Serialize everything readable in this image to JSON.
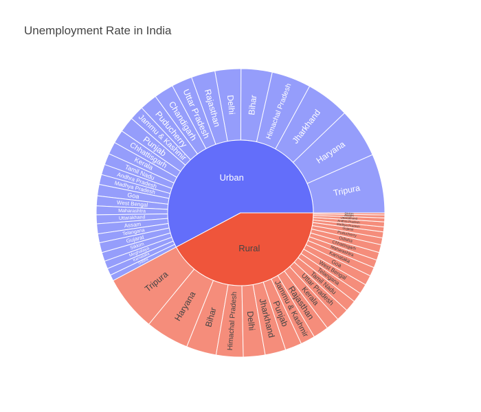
{
  "chart_data": {
    "type": "sunburst",
    "title": "Unemployment Rate in India",
    "colors": {
      "Urban": {
        "inner": "#636efa",
        "outer": "#959dfb"
      },
      "Rural": {
        "inner": "#ef553b",
        "outer": "#f58d7b"
      },
      "border": "#ffffff",
      "text_light": "#ffffff",
      "text_dark": "#444444"
    },
    "groups": [
      {
        "name": "Urban",
        "children": [
          {
            "name": "Tripura",
            "value": 28.5
          },
          {
            "name": "Haryana",
            "value": 24.0
          },
          {
            "name": "Jharkhand",
            "value": 21.0
          },
          {
            "name": "Himachal Pradesh",
            "value": 19.0
          },
          {
            "name": "Bihar",
            "value": 15.0
          },
          {
            "name": "Delhi",
            "value": 12.5
          },
          {
            "name": "Rajasthan",
            "value": 11.5
          },
          {
            "name": "Uttar Pradesh",
            "value": 10.0
          },
          {
            "name": "Chandigarh",
            "value": 9.5
          },
          {
            "name": "Puducherry",
            "value": 8.5
          },
          {
            "name": "Jammu & Kashmir",
            "value": 7.0
          },
          {
            "name": "Punjab",
            "value": 7.5
          },
          {
            "name": "Chhattisgarh",
            "value": 6.5
          },
          {
            "name": "Kerala",
            "value": 6.0
          },
          {
            "name": "Tamil Nadu",
            "value": 5.5
          },
          {
            "name": "Andhra Pradesh",
            "value": 5.0
          },
          {
            "name": "Madhya Pradesh",
            "value": 4.8
          },
          {
            "name": "Goa",
            "value": 5.5
          },
          {
            "name": "West Bengal",
            "value": 4.8
          },
          {
            "name": "Maharashtra",
            "value": 4.3
          },
          {
            "name": "Uttarakhand",
            "value": 4.3
          },
          {
            "name": "Assam",
            "value": 4.8
          },
          {
            "name": "Telangana",
            "value": 4.3
          },
          {
            "name": "Gujarat",
            "value": 4.8
          },
          {
            "name": "Sikkim",
            "value": 4.3
          },
          {
            "name": "Meghalaya",
            "value": 3.8
          },
          {
            "name": "Karnataka",
            "value": 3.4
          },
          {
            "name": "Odisha",
            "value": 2.9
          }
        ]
      },
      {
        "name": "Rural",
        "children": [
          {
            "name": "Tripura",
            "value": 27.0
          },
          {
            "name": "Haryana",
            "value": 21.0
          },
          {
            "name": "Bihar",
            "value": 14.5
          },
          {
            "name": "Himachal Pradesh",
            "value": 13.0
          },
          {
            "name": "Delhi",
            "value": 10.5
          },
          {
            "name": "Jharkhand",
            "value": 10.0
          },
          {
            "name": "Punjab",
            "value": 8.0
          },
          {
            "name": "Jammu & Kashmir",
            "value": 7.0
          },
          {
            "name": "Rajasthan",
            "value": 7.5
          },
          {
            "name": "Kerala",
            "value": 6.5
          },
          {
            "name": "Uttar Pradesh",
            "value": 6.0
          },
          {
            "name": "Tamil Nadu",
            "value": 5.5
          },
          {
            "name": "Telangana",
            "value": 4.8
          },
          {
            "name": "West Bengal",
            "value": 4.8
          },
          {
            "name": "Goa",
            "value": 4.8
          },
          {
            "name": "Karnataka",
            "value": 4.3
          },
          {
            "name": "Maharashtra",
            "value": 3.8
          },
          {
            "name": "Chhattisgarh",
            "value": 3.8
          },
          {
            "name": "Odisha",
            "value": 3.8
          },
          {
            "name": "Puducherry",
            "value": 3.3
          },
          {
            "name": "Gujarat",
            "value": 2.9
          },
          {
            "name": "Madhya Pradesh",
            "value": 2.4
          },
          {
            "name": "Andhra Pradesh",
            "value": 2.4
          },
          {
            "name": "Uttarakhand",
            "value": 1.9
          },
          {
            "name": "Assam",
            "value": 1.4
          },
          {
            "name": "Sikkim",
            "value": 1.0
          }
        ]
      }
    ]
  }
}
